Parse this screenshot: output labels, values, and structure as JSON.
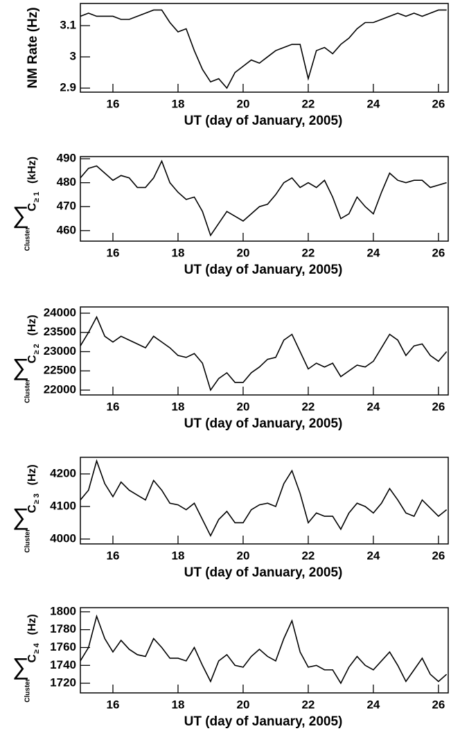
{
  "chart_data": [
    {
      "type": "line",
      "x_label": "UT (day of January, 2005)",
      "y_label": "NM Rate (Hz)",
      "color": "#000000",
      "x": [
        15,
        15.25,
        15.5,
        15.75,
        16,
        16.25,
        16.5,
        16.75,
        17,
        17.25,
        17.5,
        17.75,
        18,
        18.25,
        18.5,
        18.75,
        19,
        19.25,
        19.5,
        19.75,
        20,
        20.25,
        20.5,
        20.75,
        21,
        21.25,
        21.5,
        21.75,
        22,
        22.25,
        22.5,
        22.75,
        23,
        23.25,
        23.5,
        23.75,
        24,
        24.25,
        24.5,
        24.75,
        25,
        25.25,
        25.5,
        25.75,
        26,
        26.25
      ],
      "values": [
        3.13,
        3.14,
        3.13,
        3.13,
        3.13,
        3.12,
        3.12,
        3.13,
        3.14,
        3.15,
        3.15,
        3.11,
        3.08,
        3.09,
        3.02,
        2.96,
        2.92,
        2.93,
        2.9,
        2.95,
        2.97,
        2.99,
        2.98,
        3.0,
        3.02,
        3.03,
        3.04,
        3.04,
        2.93,
        3.02,
        3.03,
        3.01,
        3.04,
        3.06,
        3.09,
        3.11,
        3.11,
        3.12,
        3.13,
        3.14,
        3.13,
        3.14,
        3.13,
        3.14,
        3.15,
        3.15
      ],
      "xlim": [
        15,
        26.3
      ],
      "ylim": [
        2.887,
        3.171
      ],
      "xticks": [
        16,
        18,
        20,
        22,
        24,
        26
      ],
      "yticks": [
        2.9,
        3,
        3.1
      ]
    },
    {
      "type": "line",
      "x_label": "UT (day of January, 2005)",
      "y_label": {
        "symbol": "∑",
        "subscript": "Cluster",
        "main": "C",
        "index": "≥ 1",
        "unit": "(kHz)"
      },
      "color": "#000000",
      "x": [
        15,
        15.25,
        15.5,
        15.75,
        16,
        16.25,
        16.5,
        16.75,
        17,
        17.25,
        17.5,
        17.75,
        18,
        18.25,
        18.5,
        18.75,
        19,
        19.25,
        19.5,
        19.75,
        20,
        20.25,
        20.5,
        20.75,
        21,
        21.25,
        21.5,
        21.75,
        22,
        22.25,
        22.5,
        22.75,
        23,
        23.25,
        23.5,
        23.75,
        24,
        24.25,
        24.5,
        24.75,
        25,
        25.25,
        25.5,
        25.75,
        26,
        26.25
      ],
      "values": [
        482,
        486,
        487,
        484,
        481,
        483,
        482,
        478,
        478,
        482,
        489,
        480,
        476,
        473,
        474,
        468,
        458,
        463,
        468,
        466,
        464,
        467,
        470,
        471,
        475,
        480,
        482,
        478,
        480,
        478,
        481,
        474,
        465,
        467,
        474,
        470,
        467,
        476,
        484,
        481,
        480,
        481,
        481,
        478,
        479,
        480
      ],
      "xlim": [
        15,
        26.3
      ],
      "ylim": [
        455.6,
        490.9
      ],
      "xticks": [
        16,
        18,
        20,
        22,
        24,
        26
      ],
      "yticks": [
        460,
        470,
        480,
        490
      ]
    },
    {
      "type": "line",
      "x_label": "UT (day of January, 2005)",
      "y_label": {
        "symbol": "∑",
        "subscript": "Cluster",
        "main": "C",
        "index": "≥ 2",
        "unit": "(Hz)"
      },
      "color": "#000000",
      "x": [
        15,
        15.25,
        15.5,
        15.75,
        16,
        16.25,
        16.5,
        16.75,
        17,
        17.25,
        17.5,
        17.75,
        18,
        18.25,
        18.5,
        18.75,
        19,
        19.25,
        19.5,
        19.75,
        20,
        20.25,
        20.5,
        20.75,
        21,
        21.25,
        21.5,
        21.75,
        22,
        22.25,
        22.5,
        22.75,
        23,
        23.25,
        23.5,
        23.75,
        24,
        24.25,
        24.5,
        24.75,
        25,
        25.25,
        25.5,
        25.75,
        26,
        26.25
      ],
      "values": [
        23150,
        23500,
        23900,
        23400,
        23250,
        23400,
        23300,
        23200,
        23100,
        23400,
        23250,
        23100,
        22900,
        22850,
        22950,
        22700,
        22000,
        22300,
        22450,
        22200,
        22200,
        22450,
        22600,
        22800,
        22850,
        23300,
        23450,
        23000,
        22550,
        22700,
        22600,
        22700,
        22350,
        22500,
        22650,
        22600,
        22750,
        23100,
        23450,
        23300,
        22900,
        23150,
        23200,
        22900,
        22750,
        23000
      ],
      "xlim": [
        15,
        26.3
      ],
      "ylim": [
        21874,
        24162
      ],
      "xticks": [
        16,
        18,
        20,
        22,
        24,
        26
      ],
      "yticks": [
        22000,
        22500,
        23000,
        23500,
        24000
      ]
    },
    {
      "type": "line",
      "x_label": "UT (day of January, 2005)",
      "y_label": {
        "symbol": "∑",
        "subscript": "Cluster",
        "main": "C",
        "index": "≥ 3",
        "unit": "(Hz)"
      },
      "color": "#000000",
      "x": [
        15,
        15.25,
        15.5,
        15.75,
        16,
        16.25,
        16.5,
        16.75,
        17,
        17.25,
        17.5,
        17.75,
        18,
        18.25,
        18.5,
        18.75,
        19,
        19.25,
        19.5,
        19.75,
        20,
        20.25,
        20.5,
        20.75,
        21,
        21.25,
        21.5,
        21.75,
        22,
        22.25,
        22.5,
        22.75,
        23,
        23.25,
        23.5,
        23.75,
        24,
        24.25,
        24.5,
        24.75,
        25,
        25.25,
        25.5,
        25.75,
        26,
        26.25
      ],
      "values": [
        4120,
        4150,
        4240,
        4170,
        4130,
        4175,
        4150,
        4135,
        4120,
        4180,
        4150,
        4110,
        4105,
        4090,
        4110,
        4060,
        4010,
        4060,
        4085,
        4050,
        4050,
        4090,
        4105,
        4110,
        4100,
        4170,
        4210,
        4140,
        4050,
        4080,
        4070,
        4070,
        4030,
        4080,
        4110,
        4100,
        4080,
        4110,
        4155,
        4120,
        4080,
        4070,
        4120,
        4095,
        4070,
        4090
      ],
      "xlim": [
        15,
        26.3
      ],
      "ylim": [
        3985,
        4251
      ],
      "xticks": [
        16,
        18,
        20,
        22,
        24,
        26
      ],
      "yticks": [
        4000,
        4100,
        4200
      ]
    },
    {
      "type": "line",
      "x_label": "UT (day of January, 2005)",
      "y_label": {
        "symbol": "∑",
        "subscript": "Cluster",
        "main": "C",
        "index": "≥ 4",
        "unit": "(Hz)"
      },
      "color": "#000000",
      "x": [
        15,
        15.25,
        15.5,
        15.75,
        16,
        16.25,
        16.5,
        16.75,
        17,
        17.25,
        17.5,
        17.75,
        18,
        18.25,
        18.5,
        18.75,
        19,
        19.25,
        19.5,
        19.75,
        20,
        20.25,
        20.5,
        20.75,
        21,
        21.25,
        21.5,
        21.75,
        22,
        22.25,
        22.5,
        22.75,
        23,
        23.25,
        23.5,
        23.75,
        24,
        24.25,
        24.5,
        24.75,
        25,
        25.25,
        25.5,
        25.75,
        26,
        26.25
      ],
      "values": [
        1745,
        1760,
        1795,
        1770,
        1755,
        1768,
        1758,
        1752,
        1750,
        1770,
        1760,
        1748,
        1748,
        1745,
        1760,
        1740,
        1722,
        1745,
        1752,
        1740,
        1738,
        1750,
        1758,
        1750,
        1745,
        1770,
        1790,
        1755,
        1738,
        1740,
        1735,
        1735,
        1720,
        1738,
        1750,
        1740,
        1735,
        1745,
        1755,
        1740,
        1722,
        1735,
        1748,
        1730,
        1722,
        1730
      ],
      "xlim": [
        15,
        26.3
      ],
      "ylim": [
        1709.2,
        1804.6
      ],
      "xticks": [
        16,
        18,
        20,
        22,
        24,
        26
      ],
      "yticks": [
        1720,
        1740,
        1760,
        1780,
        1800
      ]
    }
  ]
}
